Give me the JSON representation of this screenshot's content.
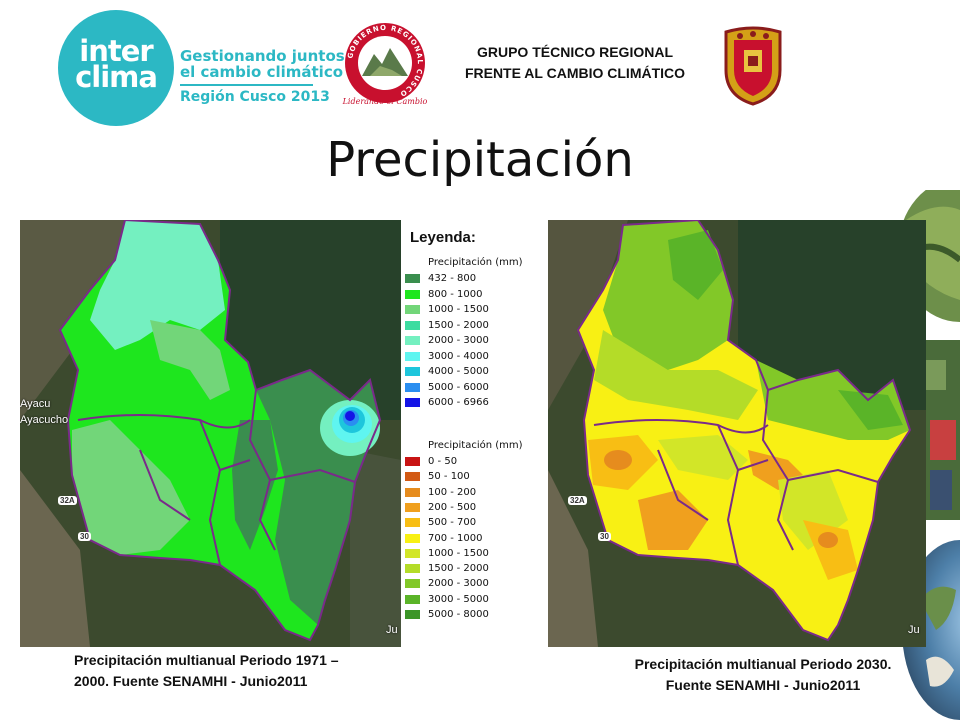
{
  "header": {
    "logo_word_line1": "inter",
    "logo_word_line2": "clima",
    "tagline_line1": "Gestionando juntos",
    "tagline_line2": "el cambio climático",
    "tagline_line3": "Región Cusco 2013",
    "seal_ring_text": "GOBIERNO REGIONAL CUSCO",
    "seal_motto": "Liderando el Cambio",
    "org_line1": "GRUPO TÉCNICO REGIONAL",
    "org_line2": "FRENTE AL CAMBIO CLIMÁTICO"
  },
  "title": "Precipitación",
  "legend": {
    "title": "Leyenda:",
    "group1": {
      "heading": "Precipitación (mm)",
      "items": [
        {
          "label": "432 - 800",
          "color": "#3a8e4e"
        },
        {
          "label": "800 - 1000",
          "color": "#1ee61e"
        },
        {
          "label": "1000 - 1500",
          "color": "#72d679"
        },
        {
          "label": "1500 - 2000",
          "color": "#3cdca0"
        },
        {
          "label": "2000 - 3000",
          "color": "#74f0c0"
        },
        {
          "label": "3000 - 4000",
          "color": "#5ff5f0"
        },
        {
          "label": "4000 - 5000",
          "color": "#1ec6dc"
        },
        {
          "label": "5000 - 6000",
          "color": "#2a8ef0"
        },
        {
          "label": "6000 - 6966",
          "color": "#1414e6"
        }
      ]
    },
    "group2": {
      "heading": "Precipitación (mm)",
      "items": [
        {
          "label": "0 - 50",
          "color": "#c81414"
        },
        {
          "label": "50 - 100",
          "color": "#d25a14"
        },
        {
          "label": "100 - 200",
          "color": "#e68c1e"
        },
        {
          "label": "200 - 500",
          "color": "#f0a01e"
        },
        {
          "label": "500 - 700",
          "color": "#f8be14"
        },
        {
          "label": "700 - 1000",
          "color": "#f8f014"
        },
        {
          "label": "1000 - 1500",
          "color": "#d2e628"
        },
        {
          "label": "1500 - 2000",
          "color": "#b4dc28"
        },
        {
          "label": "2000 - 3000",
          "color": "#82c828"
        },
        {
          "label": "3000 - 5000",
          "color": "#5ab428"
        },
        {
          "label": "5000 - 8000",
          "color": "#3c9628"
        }
      ]
    }
  },
  "maps": {
    "left_labels": {
      "place1": "Ayacu",
      "place2": "Ayacucho",
      "road1": "32A",
      "road2": "30",
      "edge": "Ju"
    },
    "right_labels": {
      "road1": "32A",
      "road2": "30",
      "edge": "Ju"
    }
  },
  "captions": {
    "left": "Precipitación multianual Periodo 1971 – 2000.  Fuente SENAMHI - Junio2011",
    "right": "Precipitación multianual Periodo 2030.  Fuente SENAMHI - Junio2011"
  }
}
